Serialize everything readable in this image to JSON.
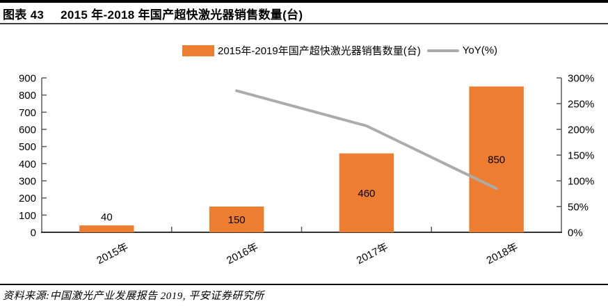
{
  "header": {
    "figure_label": "图表 43",
    "title": "2015 年-2018 年国产超快激光器销售数量(台)"
  },
  "legend": [
    {
      "type": "bar",
      "label": "2015年-2019年国产超快激光器销售数量(台)",
      "color": "#ED7D31"
    },
    {
      "type": "line",
      "label": "YoY(%)",
      "color": "#ABABAB"
    }
  ],
  "chart_data": {
    "type": "bar",
    "title": "2015 年-2018 年国产超快激光器销售数量(台)",
    "categories": [
      "2015年",
      "2016年",
      "2017年",
      "2018年"
    ],
    "series": [
      {
        "name": "2015年-2019年国产超快激光器销售数量(台)",
        "type": "bar",
        "axis": "left",
        "color": "#ED7D31",
        "values": [
          40,
          150,
          460,
          850
        ],
        "data_labels": [
          "40",
          "150",
          "460",
          "850"
        ]
      },
      {
        "name": "YoY(%)",
        "type": "line",
        "axis": "right",
        "color": "#ABABAB",
        "values": [
          null,
          275,
          206.7,
          84.8
        ]
      }
    ],
    "left_axis": {
      "min": 0,
      "max": 900,
      "step": 100,
      "tick_labels": [
        "0",
        "100",
        "200",
        "300",
        "400",
        "500",
        "600",
        "700",
        "800",
        "900"
      ]
    },
    "right_axis": {
      "min": 0,
      "max": 300,
      "step": 50,
      "tick_labels": [
        "0%",
        "50%",
        "100%",
        "150%",
        "200%",
        "250%",
        "300%"
      ]
    },
    "grid": false,
    "legend_position": "top-center",
    "xlabel": "",
    "ylabel": ""
  },
  "footer": {
    "source": "资料来源:中国激光产业发展报告 2019, 平安证券研究所"
  },
  "colors": {
    "bar": "#ED7D31",
    "line": "#ABABAB",
    "axis": "#595959",
    "baseline": "#333333",
    "rule": "#000000"
  }
}
